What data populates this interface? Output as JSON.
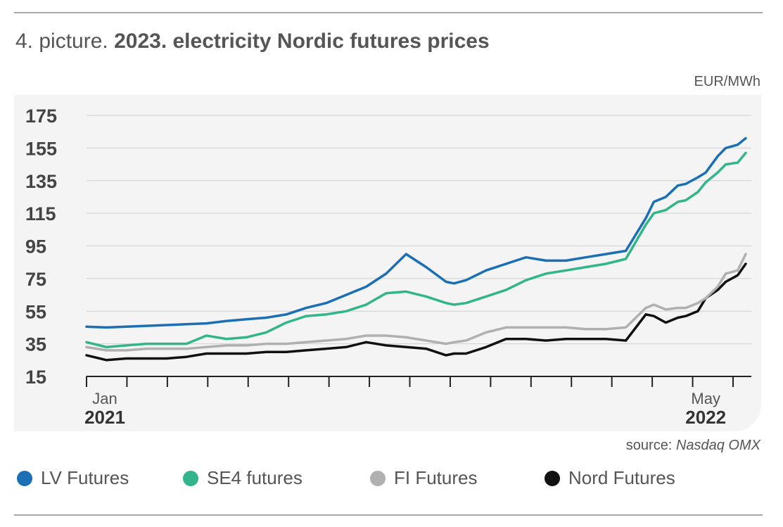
{
  "title": {
    "prefix": "4. picture.",
    "main": "2023. electricity Nordic futures prices"
  },
  "unit": "EUR/MWh",
  "source": {
    "label": "source:",
    "name": "Nasdaq OMX"
  },
  "colors": {
    "lv": "#1a6fb5",
    "se4": "#33b58c",
    "fi": "#b0b0b0",
    "nord": "#111111",
    "grid": "#cfcfcf",
    "axis": "#222222"
  },
  "chart_data": {
    "type": "line",
    "ylabel": "EUR/MWh",
    "ylim": [
      15,
      175
    ],
    "yticks": [
      15,
      35,
      55,
      75,
      95,
      115,
      135,
      155,
      175
    ],
    "x_range": [
      0,
      16.5
    ],
    "x_labels": [
      {
        "month": "Jan",
        "year": "2021",
        "x": 0
      },
      {
        "month": "May",
        "year": "2022",
        "x": 15.5
      }
    ],
    "x_ticks_count": 17,
    "grid": "horizontal",
    "legend_position": "bottom",
    "series": [
      {
        "name": "LV Futures",
        "color": "#1a6fb5",
        "x": [
          0,
          0.5,
          1,
          1.5,
          2,
          2.5,
          3,
          3.5,
          4,
          4.5,
          5,
          5.5,
          6,
          6.5,
          7,
          7.5,
          8,
          8.5,
          9,
          9.2,
          9.5,
          10,
          10.5,
          11,
          11.5,
          12,
          12.5,
          13,
          13.5,
          14,
          14.2,
          14.5,
          14.8,
          15,
          15.3,
          15.5,
          15.8,
          16,
          16.3,
          16.5
        ],
        "values": [
          45.5,
          45,
          45.5,
          46,
          46.5,
          47,
          47.5,
          49,
          50,
          51,
          53,
          57,
          60,
          65,
          70,
          78,
          90,
          82,
          73,
          72,
          74,
          80,
          84,
          88,
          86,
          86,
          88,
          90,
          92,
          112,
          122,
          125,
          132,
          133,
          137,
          140,
          150,
          155,
          157,
          161
        ]
      },
      {
        "name": "SE4 futures",
        "color": "#33b58c",
        "x": [
          0,
          0.5,
          1,
          1.5,
          2,
          2.5,
          3,
          3.5,
          4,
          4.5,
          5,
          5.5,
          6,
          6.5,
          7,
          7.5,
          8,
          8.5,
          9,
          9.2,
          9.5,
          10,
          10.5,
          11,
          11.5,
          12,
          12.5,
          13,
          13.5,
          14,
          14.2,
          14.5,
          14.8,
          15,
          15.3,
          15.5,
          15.8,
          16,
          16.3,
          16.5
        ],
        "values": [
          36,
          33,
          34,
          35,
          35,
          35,
          40,
          38,
          39,
          42,
          48,
          52,
          53,
          55,
          59,
          66,
          67,
          64,
          60,
          59,
          60,
          64,
          68,
          74,
          78,
          80,
          82,
          84,
          87,
          108,
          115,
          117,
          122,
          123,
          128,
          134,
          140,
          145,
          146,
          152
        ]
      },
      {
        "name": "FI Futures",
        "color": "#b0b0b0",
        "x": [
          0,
          0.5,
          1,
          1.5,
          2,
          2.5,
          3,
          3.5,
          4,
          4.5,
          5,
          5.5,
          6,
          6.5,
          7,
          7.5,
          8,
          8.5,
          9,
          9.2,
          9.5,
          10,
          10.5,
          11,
          11.5,
          12,
          12.5,
          13,
          13.5,
          14,
          14.2,
          14.5,
          14.8,
          15,
          15.3,
          15.5,
          15.8,
          16,
          16.3,
          16.5
        ],
        "values": [
          33,
          31,
          31,
          32,
          32,
          32,
          33,
          34,
          34,
          35,
          35,
          36,
          37,
          38,
          40,
          40,
          39,
          37,
          35,
          36,
          37,
          42,
          45,
          45,
          45,
          45,
          44,
          44,
          45,
          57,
          59,
          56,
          57,
          57,
          60,
          63,
          70,
          78,
          80,
          90
        ]
      },
      {
        "name": "Nord Futures",
        "color": "#111111",
        "x": [
          0,
          0.5,
          1,
          1.5,
          2,
          2.5,
          3,
          3.5,
          4,
          4.5,
          5,
          5.5,
          6,
          6.5,
          7,
          7.5,
          8,
          8.5,
          9,
          9.2,
          9.5,
          10,
          10.5,
          11,
          11.5,
          12,
          12.5,
          13,
          13.5,
          14,
          14.2,
          14.5,
          14.8,
          15,
          15.3,
          15.5,
          15.8,
          16,
          16.3,
          16.5
        ],
        "values": [
          28,
          25,
          26,
          26,
          26,
          27,
          29,
          29,
          29,
          30,
          30,
          31,
          32,
          33,
          36,
          34,
          33,
          32,
          28,
          29,
          29,
          33,
          38,
          38,
          37,
          38,
          38,
          38,
          37,
          53,
          52,
          48,
          51,
          52,
          55,
          63,
          68,
          73,
          77,
          84
        ]
      }
    ]
  }
}
